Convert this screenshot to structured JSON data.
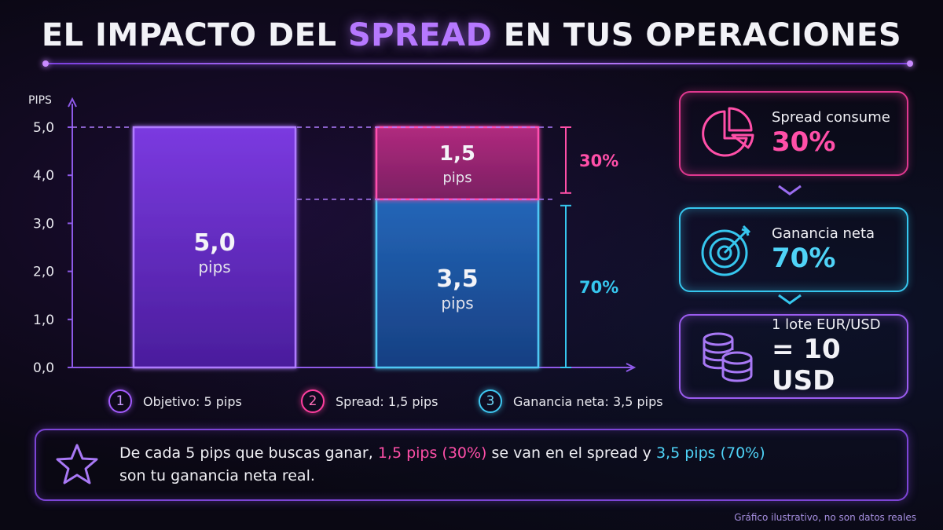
{
  "title": {
    "before": "EL IMPACTO DEL ",
    "highlight": "SPREAD",
    "after": " EN TUS OPERACIONES"
  },
  "chart_data": {
    "type": "bar",
    "stacked": true,
    "ylabel": "PIPS",
    "ylim": [
      0,
      5
    ],
    "yticks": [
      "0,0",
      "1,0",
      "2,0",
      "3,0",
      "4,0",
      "5,0"
    ],
    "bars": [
      {
        "segments": [
          {
            "value": 5.0,
            "label": "5,0",
            "unit": "pips",
            "color": "#7a38d8"
          }
        ]
      },
      {
        "segments": [
          {
            "value": 3.5,
            "label": "3,5",
            "unit": "pips",
            "color": "#1f5fa8"
          },
          {
            "value": 1.5,
            "label": "1,5",
            "unit": "pips",
            "color": "#a02a74"
          }
        ]
      }
    ],
    "annotations": [
      {
        "from": 3.5,
        "to": 5.0,
        "label": "30%",
        "color": "#ff4fa8"
      },
      {
        "from": 0,
        "to": 3.5,
        "label": "70%",
        "color": "#36c6ee"
      }
    ],
    "grid": false
  },
  "legend": [
    {
      "num": "1",
      "label": "Objetivo: 5 pips"
    },
    {
      "num": "2",
      "label": "Spread: 1,5 pips"
    },
    {
      "num": "3",
      "label": "Ganancia neta: 3,5 pips"
    }
  ],
  "cards": {
    "spread": {
      "label": "Spread consume",
      "value": "30%",
      "icon": "pie-chart-icon"
    },
    "net": {
      "label": "Ganancia neta",
      "value": "70%",
      "icon": "target-icon"
    },
    "lot": {
      "label": "1 lote EUR/USD",
      "value": "= 10 USD",
      "icon": "coins-icon"
    }
  },
  "note": {
    "part1": "De cada 5 pips que buscas ganar, ",
    "pink": "1,5 pips (30%)",
    "part2": " se van en el spread y ",
    "cyan": "3,5 pips (70%)",
    "part3": "son tu ganancia neta real."
  },
  "footer": "Gráfico ilustrativo, no son datos reales"
}
